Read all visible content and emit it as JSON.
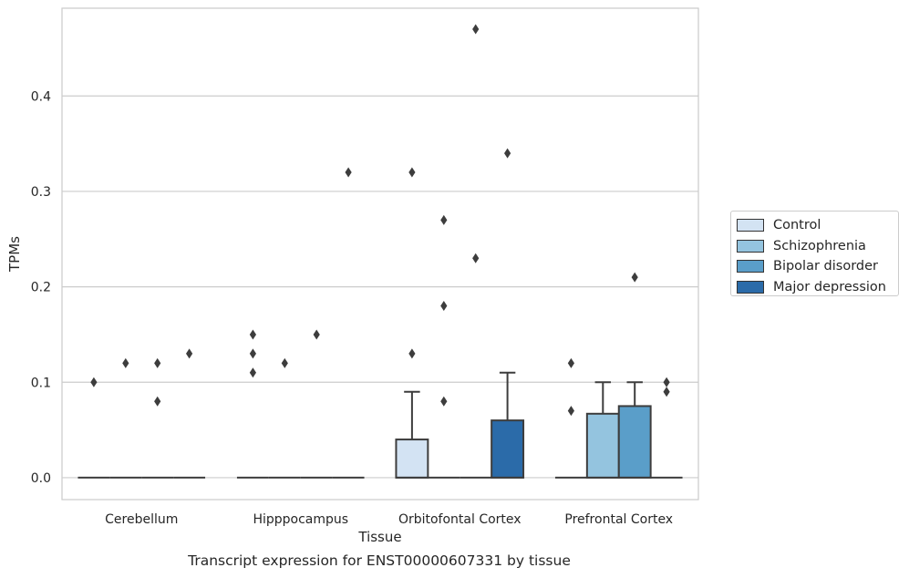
{
  "caption": "Transcript expression for ENST00000607331 by tissue",
  "chart_data": {
    "type": "box",
    "xlabel": "Tissue",
    "ylabel": "TPMs",
    "ylim": [
      -0.023,
      0.492
    ],
    "yticks": [
      "0.0",
      "0.1",
      "0.2",
      "0.3",
      "0.4"
    ],
    "grid": "horizontal",
    "legend_position": "right",
    "categories": [
      "Cerebellum",
      "Hipppocampus",
      "Orbitofontal Cortex",
      "Prefrontal Cortex"
    ],
    "series": [
      {
        "name": "Control",
        "color": "#d3e3f3",
        "boxes": [
          {
            "q1": 0,
            "median": 0,
            "q3": 0,
            "whisker_low": 0,
            "whisker_high": 0,
            "outliers": [
              0.1
            ]
          },
          {
            "q1": 0,
            "median": 0,
            "q3": 0,
            "whisker_low": 0,
            "whisker_high": 0,
            "outliers": [
              0.11,
              0.13,
              0.15
            ]
          },
          {
            "q1": 0,
            "median": 0,
            "q3": 0.04,
            "whisker_low": 0,
            "whisker_high": 0.09,
            "outliers": [
              0.13,
              0.32
            ]
          },
          {
            "q1": 0,
            "median": 0,
            "q3": 0,
            "whisker_low": 0,
            "whisker_high": 0,
            "outliers": [
              0.07,
              0.12
            ]
          }
        ]
      },
      {
        "name": "Schizophrenia",
        "color": "#94c4df",
        "boxes": [
          {
            "q1": 0,
            "median": 0,
            "q3": 0,
            "whisker_low": 0,
            "whisker_high": 0,
            "outliers": [
              0.12
            ]
          },
          {
            "q1": 0,
            "median": 0,
            "q3": 0,
            "whisker_low": 0,
            "whisker_high": 0,
            "outliers": [
              0.12
            ]
          },
          {
            "q1": 0,
            "median": 0,
            "q3": 0,
            "whisker_low": 0,
            "whisker_high": 0,
            "outliers": [
              0.08,
              0.18,
              0.27
            ]
          },
          {
            "q1": 0,
            "median": 0,
            "q3": 0.067,
            "whisker_low": 0,
            "whisker_high": 0.1,
            "outliers": []
          }
        ]
      },
      {
        "name": "Bipolar disorder",
        "color": "#5a9ec9",
        "boxes": [
          {
            "q1": 0,
            "median": 0,
            "q3": 0,
            "whisker_low": 0,
            "whisker_high": 0,
            "outliers": [
              0.08,
              0.12
            ]
          },
          {
            "q1": 0,
            "median": 0,
            "q3": 0,
            "whisker_low": 0,
            "whisker_high": 0,
            "outliers": [
              0.15
            ]
          },
          {
            "q1": 0,
            "median": 0,
            "q3": 0,
            "whisker_low": 0,
            "whisker_high": 0,
            "outliers": [
              0.23,
              0.47
            ]
          },
          {
            "q1": 0,
            "median": 0,
            "q3": 0.075,
            "whisker_low": 0,
            "whisker_high": 0.1,
            "outliers": [
              0.21
            ]
          }
        ]
      },
      {
        "name": "Major depression",
        "color": "#2b6ba9",
        "boxes": [
          {
            "q1": 0,
            "median": 0,
            "q3": 0,
            "whisker_low": 0,
            "whisker_high": 0,
            "outliers": [
              0.13
            ]
          },
          {
            "q1": 0,
            "median": 0,
            "q3": 0,
            "whisker_low": 0,
            "whisker_high": 0,
            "outliers": [
              0.32
            ]
          },
          {
            "q1": 0,
            "median": 0,
            "q3": 0.06,
            "whisker_low": 0,
            "whisker_high": 0.11,
            "outliers": [
              0.34
            ]
          },
          {
            "q1": 0,
            "median": 0,
            "q3": 0,
            "whisker_low": 0,
            "whisker_high": 0,
            "outliers": [
              0.09,
              0.1
            ]
          }
        ]
      }
    ]
  }
}
